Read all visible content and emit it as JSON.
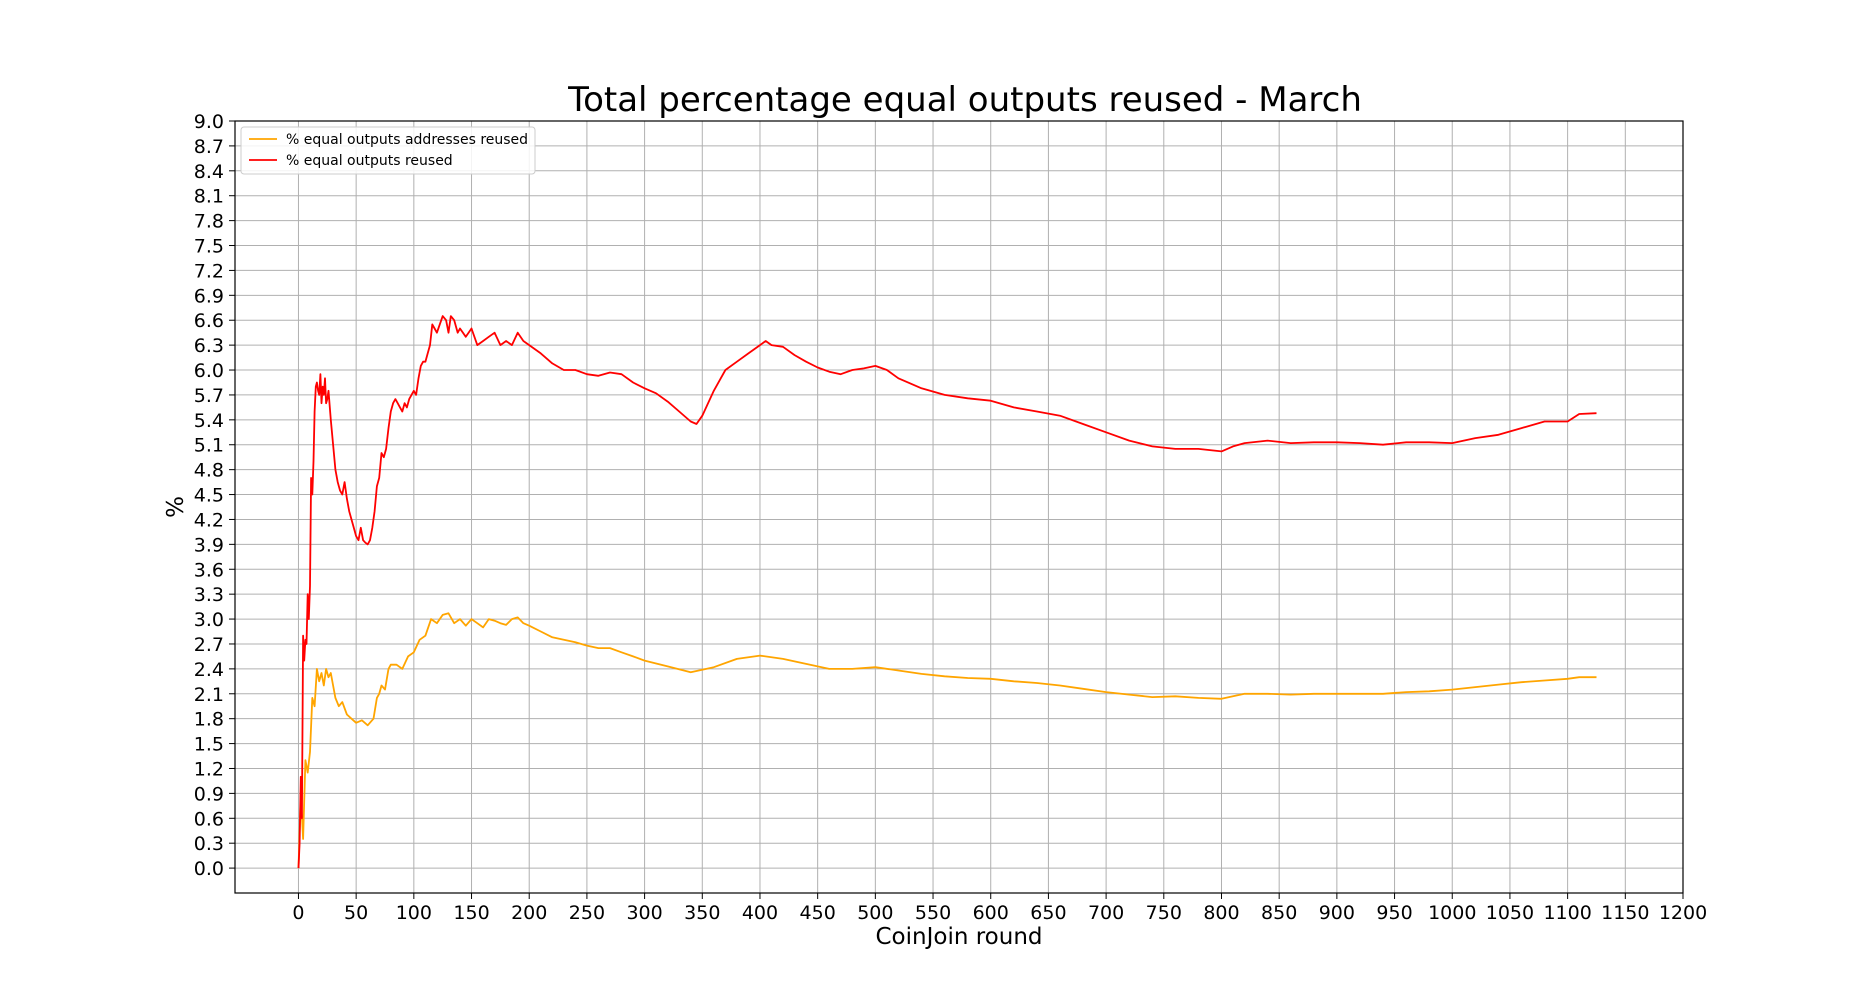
{
  "chart_data": {
    "type": "line",
    "title": "Total percentage equal outputs reused - March",
    "xlabel": "CoinJoin round",
    "ylabel": "%",
    "xlim": [
      -55,
      1200
    ],
    "ylim": [
      -0.3,
      9.0
    ],
    "x_ticks": [
      0,
      50,
      100,
      150,
      200,
      250,
      300,
      350,
      400,
      450,
      500,
      550,
      600,
      650,
      700,
      750,
      800,
      850,
      900,
      950,
      1000,
      1050,
      1100,
      1150,
      1200
    ],
    "y_ticks": [
      0.0,
      0.3,
      0.6,
      0.9,
      1.2,
      1.5,
      1.8,
      2.1,
      2.4,
      2.7,
      3.0,
      3.3,
      3.6,
      3.9,
      4.2,
      4.5,
      4.8,
      5.1,
      5.4,
      5.7,
      6.0,
      6.3,
      6.6,
      6.9,
      7.2,
      7.5,
      7.8,
      8.1,
      8.4,
      8.7,
      9.0
    ],
    "grid": true,
    "legend_position": "top-left",
    "series": [
      {
        "name": "% equal outputs addresses reused",
        "color": "#FFA500",
        "x": [
          0,
          2,
          4,
          6,
          8,
          10,
          12,
          14,
          16,
          18,
          20,
          22,
          24,
          26,
          28,
          30,
          32,
          35,
          38,
          42,
          46,
          50,
          55,
          60,
          65,
          68,
          70,
          72,
          75,
          78,
          80,
          85,
          90,
          95,
          100,
          105,
          110,
          115,
          120,
          125,
          130,
          135,
          140,
          145,
          150,
          155,
          160,
          165,
          170,
          175,
          180,
          185,
          190,
          195,
          200,
          210,
          220,
          230,
          240,
          250,
          260,
          270,
          280,
          290,
          300,
          320,
          340,
          360,
          380,
          400,
          420,
          440,
          460,
          480,
          500,
          520,
          540,
          560,
          580,
          600,
          620,
          640,
          660,
          680,
          700,
          720,
          740,
          760,
          780,
          800,
          810,
          820,
          840,
          860,
          880,
          900,
          920,
          940,
          960,
          980,
          1000,
          1020,
          1040,
          1060,
          1080,
          1100,
          1110,
          1125
        ],
        "y": [
          0.0,
          0.9,
          0.35,
          1.3,
          1.15,
          1.4,
          2.05,
          1.95,
          2.4,
          2.25,
          2.35,
          2.2,
          2.4,
          2.3,
          2.35,
          2.2,
          2.05,
          1.95,
          2.0,
          1.85,
          1.8,
          1.75,
          1.78,
          1.72,
          1.8,
          2.05,
          2.1,
          2.2,
          2.15,
          2.4,
          2.45,
          2.45,
          2.4,
          2.55,
          2.6,
          2.75,
          2.8,
          3.0,
          2.95,
          3.05,
          3.07,
          2.95,
          3.0,
          2.92,
          3.0,
          2.95,
          2.9,
          3.0,
          2.98,
          2.95,
          2.93,
          3.0,
          3.02,
          2.95,
          2.92,
          2.85,
          2.78,
          2.75,
          2.72,
          2.68,
          2.65,
          2.65,
          2.6,
          2.55,
          2.5,
          2.43,
          2.36,
          2.42,
          2.52,
          2.56,
          2.52,
          2.46,
          2.4,
          2.4,
          2.42,
          2.38,
          2.34,
          2.31,
          2.29,
          2.28,
          2.25,
          2.23,
          2.2,
          2.16,
          2.12,
          2.09,
          2.06,
          2.07,
          2.05,
          2.04,
          2.07,
          2.1,
          2.1,
          2.09,
          2.1,
          2.1,
          2.1,
          2.1,
          2.12,
          2.13,
          2.15,
          2.18,
          2.21,
          2.24,
          2.26,
          2.28,
          2.3,
          2.3
        ]
      },
      {
        "name": "% equal outputs reused",
        "color": "#FF0000",
        "x": [
          0,
          1,
          2,
          3,
          4,
          5,
          6,
          7,
          8,
          9,
          10,
          11,
          12,
          13,
          14,
          15,
          16,
          17,
          18,
          19,
          20,
          21,
          22,
          23,
          24,
          25,
          26,
          28,
          30,
          32,
          34,
          36,
          38,
          40,
          42,
          44,
          46,
          48,
          50,
          52,
          54,
          56,
          58,
          60,
          62,
          64,
          66,
          68,
          70,
          72,
          74,
          76,
          78,
          80,
          82,
          84,
          86,
          88,
          90,
          92,
          94,
          96,
          98,
          100,
          102,
          104,
          106,
          108,
          110,
          112,
          114,
          116,
          118,
          120,
          125,
          128,
          130,
          132,
          135,
          138,
          140,
          145,
          150,
          155,
          160,
          165,
          170,
          175,
          180,
          185,
          190,
          195,
          200,
          210,
          220,
          230,
          240,
          250,
          260,
          270,
          280,
          290,
          300,
          310,
          320,
          330,
          340,
          345,
          350,
          360,
          370,
          380,
          390,
          400,
          405,
          410,
          420,
          430,
          440,
          450,
          460,
          470,
          480,
          490,
          500,
          510,
          520,
          540,
          560,
          580,
          600,
          620,
          640,
          660,
          680,
          700,
          720,
          740,
          760,
          780,
          800,
          810,
          820,
          840,
          860,
          880,
          900,
          920,
          940,
          960,
          980,
          1000,
          1020,
          1040,
          1060,
          1080,
          1100,
          1110,
          1125
        ],
        "y": [
          0.0,
          0.3,
          1.1,
          0.6,
          2.8,
          2.5,
          2.75,
          2.7,
          3.3,
          3.0,
          3.4,
          4.7,
          4.5,
          4.9,
          5.5,
          5.8,
          5.85,
          5.75,
          5.7,
          5.95,
          5.6,
          5.8,
          5.7,
          5.9,
          5.6,
          5.65,
          5.75,
          5.4,
          5.1,
          4.8,
          4.65,
          4.55,
          4.5,
          4.65,
          4.45,
          4.3,
          4.2,
          4.1,
          4.0,
          3.95,
          4.1,
          3.95,
          3.92,
          3.9,
          3.95,
          4.1,
          4.3,
          4.6,
          4.7,
          5.0,
          4.95,
          5.05,
          5.3,
          5.5,
          5.6,
          5.65,
          5.6,
          5.55,
          5.5,
          5.6,
          5.55,
          5.65,
          5.7,
          5.75,
          5.7,
          5.9,
          6.05,
          6.1,
          6.1,
          6.2,
          6.3,
          6.55,
          6.5,
          6.45,
          6.65,
          6.6,
          6.45,
          6.65,
          6.6,
          6.45,
          6.5,
          6.4,
          6.5,
          6.3,
          6.35,
          6.4,
          6.45,
          6.3,
          6.35,
          6.3,
          6.45,
          6.35,
          6.3,
          6.2,
          6.08,
          6.0,
          6.0,
          5.95,
          5.93,
          5.97,
          5.95,
          5.85,
          5.78,
          5.72,
          5.62,
          5.5,
          5.38,
          5.35,
          5.45,
          5.75,
          6.0,
          6.1,
          6.2,
          6.3,
          6.35,
          6.3,
          6.28,
          6.18,
          6.1,
          6.03,
          5.98,
          5.95,
          6.0,
          6.02,
          6.05,
          6.0,
          5.9,
          5.78,
          5.7,
          5.66,
          5.63,
          5.55,
          5.5,
          5.45,
          5.35,
          5.25,
          5.15,
          5.08,
          5.05,
          5.05,
          5.02,
          5.08,
          5.12,
          5.15,
          5.12,
          5.13,
          5.13,
          5.12,
          5.1,
          5.13,
          5.13,
          5.12,
          5.18,
          5.22,
          5.3,
          5.38,
          5.38,
          5.47,
          5.48
        ]
      }
    ]
  }
}
